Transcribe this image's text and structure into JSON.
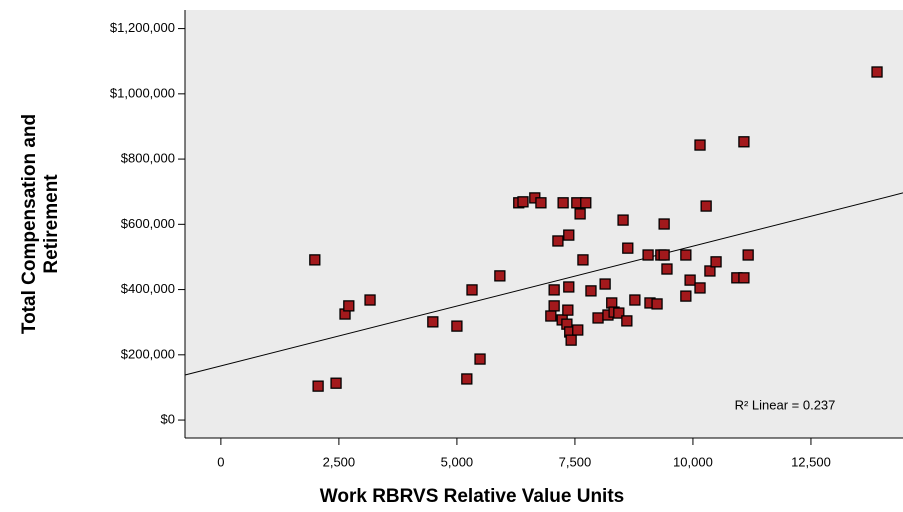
{
  "chart_data": {
    "type": "scatter",
    "x_label": "Work RBRVS Relative Value Units",
    "y_label": [
      "Total Compensation and",
      "Retirement"
    ],
    "annotation": "R² Linear = 0.237",
    "xlim": [
      -760,
      14450
    ],
    "ylim": [
      -55000,
      1257000
    ],
    "xticks": [
      0,
      {
        "value": 2500,
        "label": "2,500"
      },
      {
        "value": 5000,
        "label": "5,000"
      },
      {
        "value": 7500,
        "label": "7,500"
      },
      {
        "value": 10000,
        "label": "10,000"
      },
      {
        "value": 12500,
        "label": "12,500"
      }
    ],
    "yticks": [
      {
        "value": 0,
        "label": "$0"
      },
      {
        "value": 200000,
        "label": "$200,000"
      },
      {
        "value": 400000,
        "label": "$400,000"
      },
      {
        "value": 600000,
        "label": "$600,000"
      },
      {
        "value": 800000,
        "label": "$800,000"
      },
      {
        "value": 1000000,
        "label": "$1,000,000"
      },
      {
        "value": 1200000,
        "label": "$1,200,000"
      }
    ],
    "color": "#a3191c",
    "trendline": {
      "intercept": 166000,
      "slope": 36.7
    },
    "x": [
      1990,
      2060,
      2440,
      2630,
      2710,
      3160,
      4490,
      5000,
      5210,
      5320,
      5490,
      5910,
      6310,
      6400,
      6650,
      6780,
      6990,
      7060,
      7060,
      7140,
      7230,
      7250,
      7330,
      7350,
      7370,
      7370,
      7390,
      7420,
      7540,
      7560,
      7610,
      7670,
      7730,
      7840,
      7990,
      8140,
      8200,
      8280,
      8330,
      8430,
      8520,
      8600,
      8620,
      8770,
      9050,
      9090,
      9240,
      9320,
      9390,
      9390,
      9450,
      9850,
      9850,
      9940,
      10150,
      10150,
      10280,
      10360,
      10490,
      10930,
      11080,
      11080,
      11170,
      13900
    ],
    "values": [
      491000,
      104000,
      113000,
      325000,
      350000,
      368000,
      301000,
      288000,
      126000,
      399000,
      187000,
      442000,
      666000,
      669000,
      681000,
      666000,
      319000,
      350000,
      399000,
      549000,
      307000,
      666000,
      294000,
      337000,
      408000,
      567000,
      270000,
      245000,
      666000,
      276000,
      632000,
      491000,
      666000,
      396000,
      313000,
      417000,
      322000,
      359000,
      331000,
      328000,
      613000,
      304000,
      527000,
      368000,
      506000,
      359000,
      356000,
      506000,
      506000,
      601000,
      463000,
      506000,
      380000,
      429000,
      843000,
      405000,
      656000,
      457000,
      485000,
      436000,
      853000,
      436000,
      506000,
      1067000
    ]
  }
}
